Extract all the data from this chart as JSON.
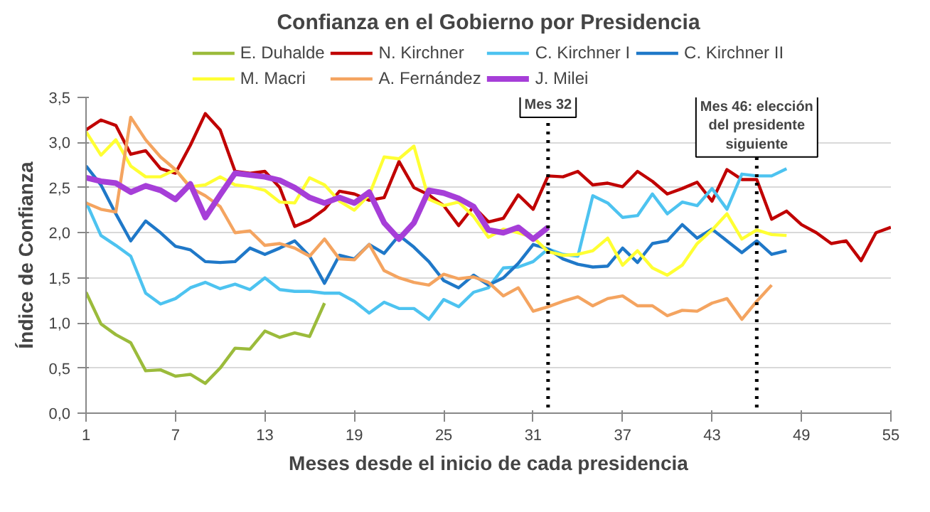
{
  "chart_data": {
    "type": "line",
    "title": "Confianza en el Gobierno por Presidencia",
    "xlabel": "Meses desde el inicio de cada presidencia",
    "ylabel": "Índice de Confianza",
    "xlim": [
      1,
      55
    ],
    "xticks": [
      1,
      7,
      13,
      19,
      25,
      31,
      37,
      43,
      49,
      55
    ],
    "ylim": [
      0,
      3.5
    ],
    "yticks": [
      {
        "value": 0,
        "label": "0,0"
      },
      {
        "value": 0.5,
        "label": "0,5"
      },
      {
        "value": 1,
        "label": "1,0"
      },
      {
        "value": 1.5,
        "label": "1,5"
      },
      {
        "value": 2,
        "label": "2,0"
      },
      {
        "value": 2.5,
        "label": "2,5"
      },
      {
        "value": 3,
        "label": "3,0"
      },
      {
        "value": 3.5,
        "label": "3,5"
      }
    ],
    "grid": "y",
    "legend": "top",
    "marker": "none",
    "line_style": "solid",
    "ref_lines": [
      {
        "axis": "x",
        "value": 32,
        "label": "Mes 32",
        "line_style": "dotted",
        "color": "#000000"
      },
      {
        "axis": "x",
        "value": 46,
        "label": "Mes 46: elección del presidente siguiente",
        "line_style": "dotted",
        "color": "#000000"
      }
    ],
    "series": [
      {
        "name": "E. Duhalde",
        "color": "#9bbb3b",
        "x": [
          1,
          2,
          3,
          4,
          5,
          6,
          7,
          8,
          9,
          10,
          11,
          12,
          13,
          14,
          15,
          16,
          17
        ],
        "values": [
          1.34,
          0.99,
          0.87,
          0.78,
          0.47,
          0.48,
          0.41,
          0.43,
          0.33,
          0.5,
          0.72,
          0.71,
          0.91,
          0.84,
          0.89,
          0.85,
          1.22
        ]
      },
      {
        "name": "N. Kirchner",
        "color": "#c00000",
        "x": [
          1,
          2,
          3,
          4,
          5,
          6,
          7,
          8,
          9,
          10,
          11,
          12,
          13,
          14,
          15,
          16,
          17,
          18,
          19,
          20,
          21,
          22,
          23,
          24,
          25,
          26,
          27,
          28,
          29,
          30,
          31,
          32,
          33,
          34,
          35,
          36,
          37,
          38,
          39,
          40,
          41,
          42,
          43,
          44,
          45,
          46,
          47,
          48,
          49,
          50,
          51,
          52,
          53,
          54,
          55
        ],
        "values": [
          3.14,
          3.25,
          3.19,
          2.87,
          2.91,
          2.71,
          2.66,
          2.97,
          3.32,
          3.14,
          2.68,
          2.66,
          2.68,
          2.5,
          2.07,
          2.14,
          2.26,
          2.46,
          2.43,
          2.36,
          2.39,
          2.79,
          2.5,
          2.42,
          2.3,
          2.08,
          2.29,
          2.12,
          2.16,
          2.42,
          2.26,
          2.63,
          2.62,
          2.68,
          2.53,
          2.55,
          2.51,
          2.68,
          2.57,
          2.43,
          2.49,
          2.56,
          2.35,
          2.7,
          2.59,
          2.59,
          2.15,
          2.24,
          2.09,
          2.0,
          1.88,
          1.91,
          1.69,
          2.0,
          2.06
        ]
      },
      {
        "name": "C. Kirchner I",
        "color": "#4dc3f0",
        "x": [
          1,
          2,
          3,
          4,
          5,
          6,
          7,
          8,
          9,
          10,
          11,
          12,
          13,
          14,
          15,
          16,
          17,
          18,
          19,
          20,
          21,
          22,
          23,
          24,
          25,
          26,
          27,
          28,
          29,
          30,
          31,
          32,
          33,
          34,
          35,
          36,
          37,
          38,
          39,
          40,
          41,
          42,
          43,
          44,
          45,
          46,
          47,
          48
        ],
        "values": [
          2.34,
          1.97,
          1.86,
          1.74,
          1.33,
          1.21,
          1.27,
          1.39,
          1.45,
          1.38,
          1.43,
          1.37,
          1.5,
          1.37,
          1.35,
          1.35,
          1.33,
          1.33,
          1.24,
          1.11,
          1.23,
          1.16,
          1.16,
          1.04,
          1.26,
          1.18,
          1.34,
          1.39,
          1.61,
          1.62,
          1.68,
          1.82,
          1.76,
          1.74,
          2.41,
          2.33,
          2.17,
          2.19,
          2.43,
          2.21,
          2.34,
          2.3,
          2.49,
          2.26,
          2.65,
          2.63,
          2.63,
          2.71
        ]
      },
      {
        "name": "C. Kirchner II",
        "color": "#1f78c8",
        "x": [
          1,
          2,
          3,
          4,
          5,
          6,
          7,
          8,
          9,
          10,
          11,
          12,
          13,
          14,
          15,
          16,
          17,
          18,
          19,
          20,
          21,
          22,
          23,
          24,
          25,
          26,
          27,
          28,
          29,
          30,
          31,
          32,
          33,
          34,
          35,
          36,
          37,
          38,
          39,
          40,
          41,
          42,
          43,
          44,
          45,
          46,
          47,
          48
        ],
        "values": [
          2.74,
          2.53,
          2.21,
          1.91,
          2.13,
          2.0,
          1.85,
          1.81,
          1.68,
          1.67,
          1.68,
          1.83,
          1.76,
          1.83,
          1.91,
          1.74,
          1.44,
          1.75,
          1.71,
          1.87,
          1.77,
          1.97,
          1.84,
          1.68,
          1.47,
          1.39,
          1.53,
          1.42,
          1.5,
          1.66,
          1.87,
          1.82,
          1.71,
          1.65,
          1.62,
          1.63,
          1.83,
          1.67,
          1.88,
          1.91,
          2.09,
          1.94,
          2.04,
          1.91,
          1.78,
          1.91,
          1.76,
          1.8
        ]
      },
      {
        "name": "M. Macri",
        "color": "#ffff33",
        "x": [
          1,
          2,
          3,
          4,
          5,
          6,
          7,
          8,
          9,
          10,
          11,
          12,
          13,
          14,
          15,
          16,
          17,
          18,
          19,
          20,
          21,
          22,
          23,
          24,
          25,
          26,
          27,
          28,
          29,
          30,
          31,
          32,
          33,
          34,
          35,
          36,
          37,
          38,
          39,
          40,
          41,
          42,
          43,
          44,
          45,
          46,
          47,
          48
        ],
        "values": [
          3.12,
          2.86,
          3.03,
          2.74,
          2.62,
          2.62,
          2.7,
          2.51,
          2.53,
          2.62,
          2.53,
          2.51,
          2.47,
          2.34,
          2.33,
          2.61,
          2.53,
          2.35,
          2.25,
          2.42,
          2.84,
          2.82,
          2.96,
          2.37,
          2.3,
          2.34,
          2.18,
          1.95,
          2.04,
          2.0,
          1.95,
          1.79,
          1.75,
          1.76,
          1.8,
          1.94,
          1.64,
          1.8,
          1.61,
          1.53,
          1.64,
          1.88,
          2.03,
          2.21,
          1.93,
          2.03,
          1.98,
          1.97
        ]
      },
      {
        "name": "A. Fernández",
        "color": "#f4a460",
        "x": [
          1,
          2,
          3,
          4,
          5,
          6,
          7,
          8,
          9,
          10,
          11,
          12,
          13,
          14,
          15,
          16,
          17,
          18,
          19,
          20,
          21,
          22,
          23,
          24,
          25,
          26,
          27,
          28,
          29,
          30,
          31,
          32,
          33,
          34,
          35,
          36,
          37,
          38,
          39,
          40,
          41,
          42,
          43,
          44,
          45,
          46,
          47
        ],
        "values": [
          2.33,
          2.26,
          2.23,
          3.28,
          3.03,
          2.84,
          2.7,
          2.5,
          2.41,
          2.29,
          2.0,
          2.02,
          1.86,
          1.88,
          1.83,
          1.74,
          1.93,
          1.71,
          1.7,
          1.87,
          1.58,
          1.5,
          1.45,
          1.42,
          1.54,
          1.49,
          1.51,
          1.45,
          1.3,
          1.39,
          1.13,
          1.18,
          1.24,
          1.29,
          1.19,
          1.27,
          1.3,
          1.19,
          1.19,
          1.08,
          1.14,
          1.13,
          1.22,
          1.27,
          1.04,
          1.24,
          1.42
        ]
      },
      {
        "name": "J. Milei",
        "color": "#a63ed8",
        "x": [
          1,
          2,
          3,
          4,
          5,
          6,
          7,
          8,
          9,
          10,
          11,
          12,
          13,
          14,
          15,
          16,
          17,
          18,
          19,
          20,
          21,
          22,
          23,
          24,
          25,
          26,
          27,
          28,
          29,
          30,
          31,
          32
        ],
        "values": [
          2.61,
          2.57,
          2.55,
          2.45,
          2.52,
          2.47,
          2.37,
          2.54,
          2.17,
          2.42,
          2.66,
          2.64,
          2.62,
          2.58,
          2.5,
          2.39,
          2.33,
          2.39,
          2.33,
          2.45,
          2.11,
          1.93,
          2.11,
          2.47,
          2.44,
          2.38,
          2.29,
          2.03,
          2.0,
          2.06,
          1.93,
          2.06
        ]
      }
    ]
  }
}
